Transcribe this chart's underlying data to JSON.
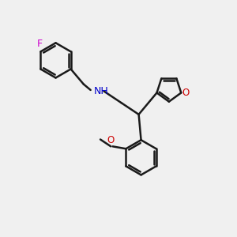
{
  "background_color": "#f0f0f0",
  "bond_color": "#1a1a1a",
  "nitrogen_color": "#0000cc",
  "oxygen_color": "#cc0000",
  "fluorine_color": "#cc00cc",
  "bond_width": 1.8,
  "figsize": [
    3.0,
    3.0
  ],
  "dpi": 100,
  "xlim": [
    0,
    10
  ],
  "ylim": [
    0,
    10
  ]
}
